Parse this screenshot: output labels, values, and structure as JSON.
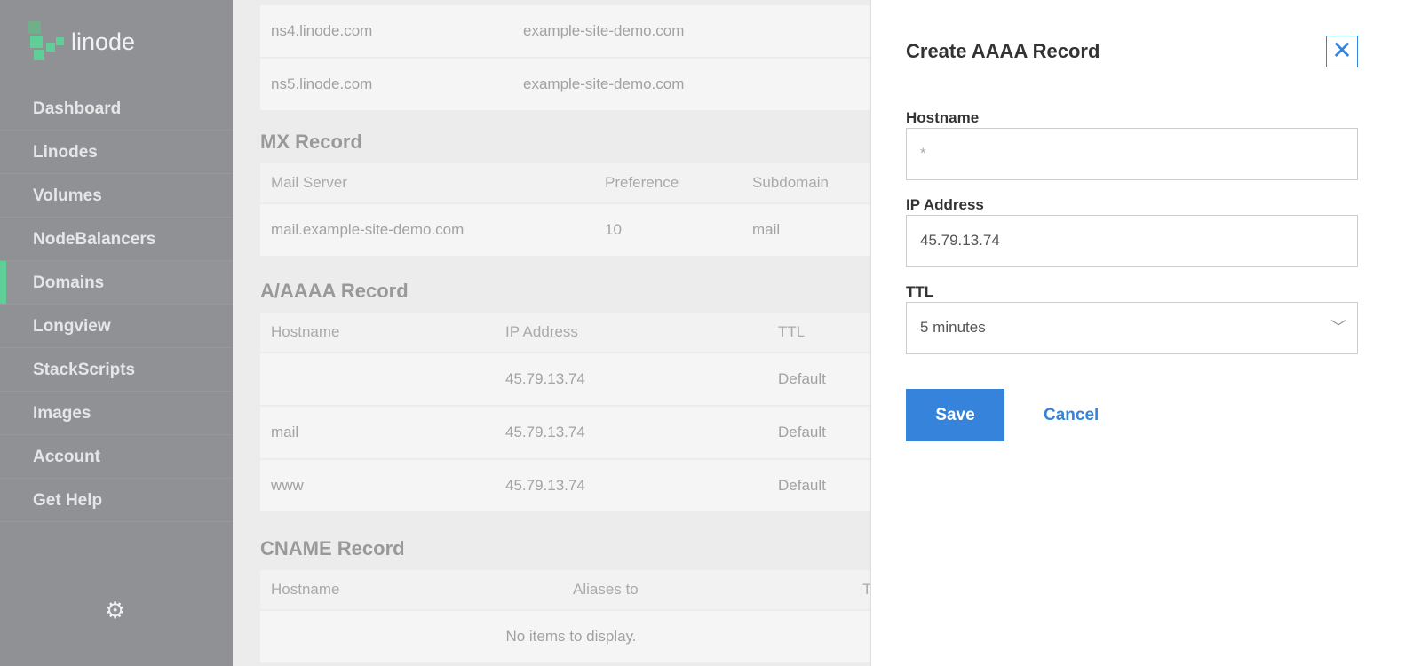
{
  "brand": {
    "name": "linode",
    "accent": "#5fcf97"
  },
  "sidebar": {
    "items": [
      {
        "label": "Dashboard"
      },
      {
        "label": "Linodes"
      },
      {
        "label": "Volumes"
      },
      {
        "label": "NodeBalancers"
      },
      {
        "label": "Domains",
        "active": true
      },
      {
        "label": "Longview"
      },
      {
        "label": "StackScripts"
      },
      {
        "label": "Images"
      },
      {
        "label": "Account"
      },
      {
        "label": "Get Help"
      }
    ],
    "settings_icon": "gear-icon"
  },
  "main": {
    "ns_rows": [
      [
        "ns4.linode.com",
        "example-site-demo.com"
      ],
      [
        "ns5.linode.com",
        "example-site-demo.com"
      ]
    ],
    "mx": {
      "title": "MX Record",
      "headers": [
        "Mail Server",
        "Preference",
        "Subdomain"
      ],
      "rows": [
        [
          "mail.example-site-demo.com",
          "10",
          "mail"
        ]
      ]
    },
    "a": {
      "title": "A/AAAA Record",
      "headers": [
        "Hostname",
        "IP Address",
        "TTL"
      ],
      "rows": [
        [
          "",
          "45.79.13.74",
          "Default"
        ],
        [
          "mail",
          "45.79.13.74",
          "Default"
        ],
        [
          "www",
          "45.79.13.74",
          "Default"
        ]
      ]
    },
    "cname": {
      "title": "CNAME Record",
      "headers": [
        "Hostname",
        "Aliases to",
        "T"
      ],
      "empty": "No items to display."
    }
  },
  "drawer": {
    "title": "Create AAAA Record",
    "hostname_label": "Hostname",
    "hostname_placeholder": "*",
    "ip_label": "IP Address",
    "ip_value": "45.79.13.74",
    "ttl_label": "TTL",
    "ttl_value": "5 minutes",
    "save": "Save",
    "cancel": "Cancel",
    "accent": "#3683dc"
  }
}
